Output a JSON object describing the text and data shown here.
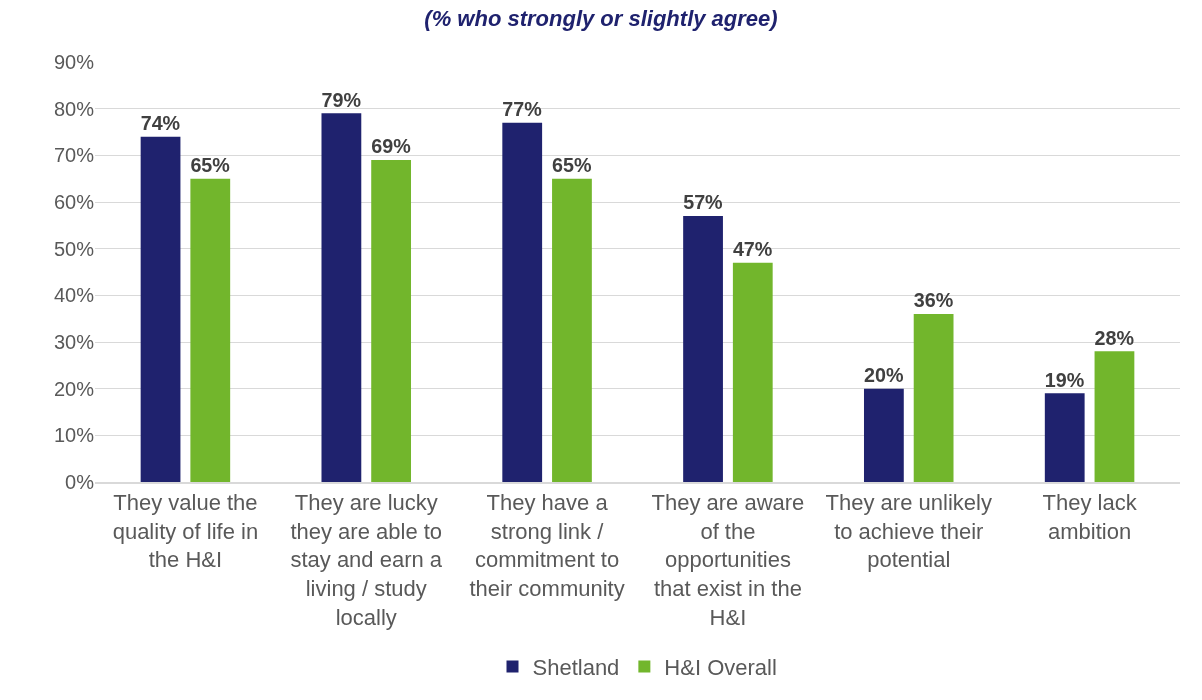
{
  "chart_data": {
    "type": "bar",
    "title": "(% who strongly or slightly agree)",
    "categories": [
      "They value the quality of life in the H&I",
      "They are lucky they are able to stay and earn a living / study locally",
      "They have a strong link / commitment to their community",
      "They are aware of the opportunities that exist in the H&I",
      "They are unlikely to achieve their potential",
      "They lack ambition"
    ],
    "series": [
      {
        "name": "Shetland",
        "color": "#1f226e",
        "values": [
          74,
          79,
          77,
          57,
          20,
          19
        ],
        "value_labels": [
          "74%",
          "79%",
          "77%",
          "57%",
          "20%",
          "19%"
        ]
      },
      {
        "name": "H&I Overall",
        "color": "#72b62c",
        "values": [
          65,
          69,
          65,
          47,
          36,
          28
        ],
        "value_labels": [
          "65%",
          "69%",
          "65%",
          "47%",
          "36%",
          "28%"
        ]
      }
    ],
    "ylim": [
      0,
      90
    ],
    "yticks": [
      {
        "value": 0,
        "label": "0%"
      },
      {
        "value": 10,
        "label": "10%"
      },
      {
        "value": 20,
        "label": "20%"
      },
      {
        "value": 30,
        "label": "30%"
      },
      {
        "value": 40,
        "label": "40%"
      },
      {
        "value": 50,
        "label": "50%"
      },
      {
        "value": 60,
        "label": "60%"
      },
      {
        "value": 70,
        "label": "70%"
      },
      {
        "value": 80,
        "label": "80%"
      },
      {
        "value": 90,
        "label": "90%"
      }
    ],
    "grid": "y",
    "legend": "bottom"
  }
}
